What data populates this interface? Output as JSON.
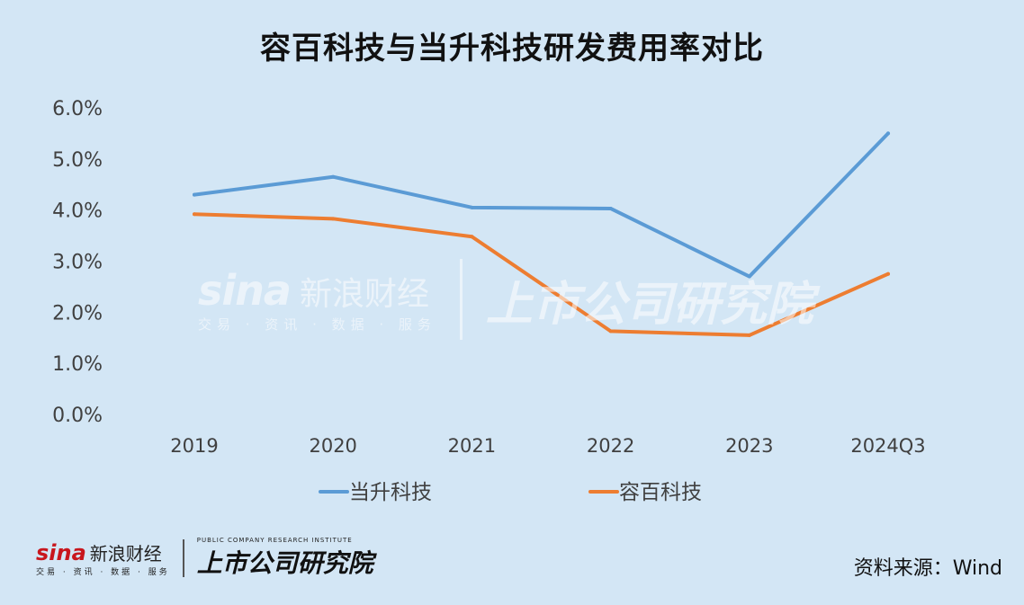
{
  "title": "容百科技与当升科技研发费用率对比",
  "chart_data": {
    "type": "line",
    "categories": [
      "2019",
      "2020",
      "2021",
      "2022",
      "2023",
      "2024Q3"
    ],
    "series": [
      {
        "name": "当升科技",
        "color": "#5b9bd5",
        "values": [
          4.3,
          4.65,
          4.05,
          4.03,
          2.7,
          5.5
        ]
      },
      {
        "name": "容百科技",
        "color": "#ed7d31",
        "values": [
          3.92,
          3.83,
          3.48,
          1.63,
          1.55,
          2.75
        ]
      }
    ],
    "y_ticks": [
      "0.0%",
      "1.0%",
      "2.0%",
      "3.0%",
      "4.0%",
      "5.0%",
      "6.0%"
    ],
    "ylim": [
      0,
      6
    ],
    "grid": false,
    "legend": "bottom"
  },
  "watermark": {
    "brand": "sina",
    "brand_cn": "新浪财经",
    "brand_sub": "交易 · 资讯 · 数据 · 服务",
    "institute": "上市公司研究院",
    "institute_en": "PUBLIC COMPANY RESEARCH INSTITUTE"
  },
  "source": "资料来源：Wind"
}
